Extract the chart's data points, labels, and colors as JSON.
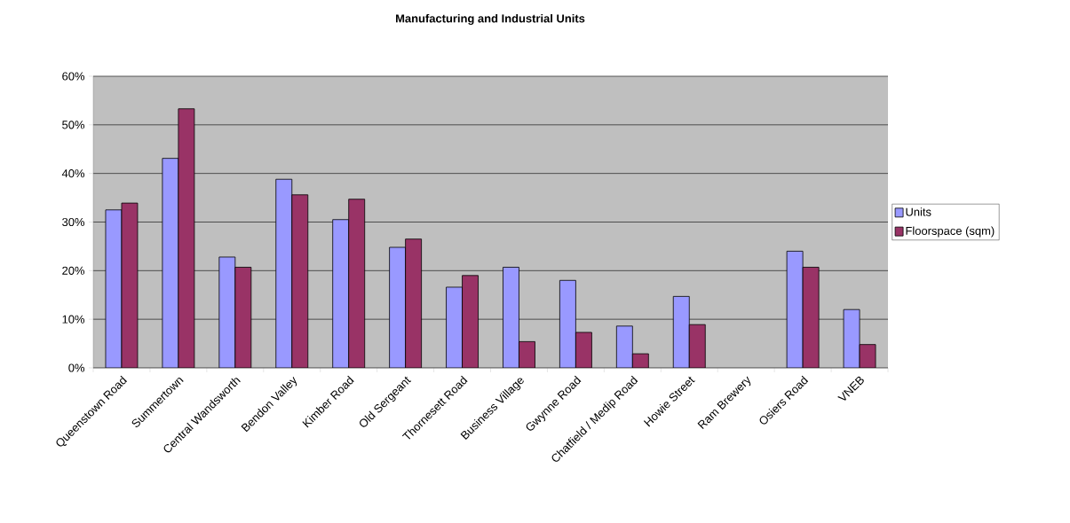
{
  "chart_data": {
    "type": "bar",
    "title": "Manufacturing and Industrial Units",
    "categories": [
      "Queenstown Road",
      "Summertown",
      "Central Wandsworth",
      "Bendon Valley",
      "Kimber Road",
      "Old Sergeant",
      "Thornesett Road",
      "Business Village",
      "Gwynne Road",
      "Chatfield / Medip Road",
      "Howie Street",
      "Ram Brewery",
      "Osiers Road",
      "VNEB"
    ],
    "series": [
      {
        "name": "Units",
        "color": "#9999ff",
        "values": [
          32.5,
          43.1,
          22.8,
          38.8,
          30.5,
          24.8,
          16.6,
          20.7,
          18.0,
          8.6,
          14.7,
          null,
          24.0,
          12.0
        ]
      },
      {
        "name": "Floorspace (sqm)",
        "color": "#993366",
        "values": [
          33.9,
          53.3,
          20.7,
          35.6,
          34.7,
          26.5,
          19.0,
          5.4,
          7.3,
          2.9,
          8.9,
          null,
          20.7,
          4.8
        ]
      }
    ],
    "ylim": [
      0,
      60
    ],
    "yticks": [
      {
        "value": 0,
        "label": "0%"
      },
      {
        "value": 10,
        "label": "10%"
      },
      {
        "value": 20,
        "label": "20%"
      },
      {
        "value": 30,
        "label": "30%"
      },
      {
        "value": 40,
        "label": "40%"
      },
      {
        "value": 50,
        "label": "50%"
      },
      {
        "value": 60,
        "label": "60%"
      }
    ],
    "grid": "y",
    "legend": "right"
  }
}
